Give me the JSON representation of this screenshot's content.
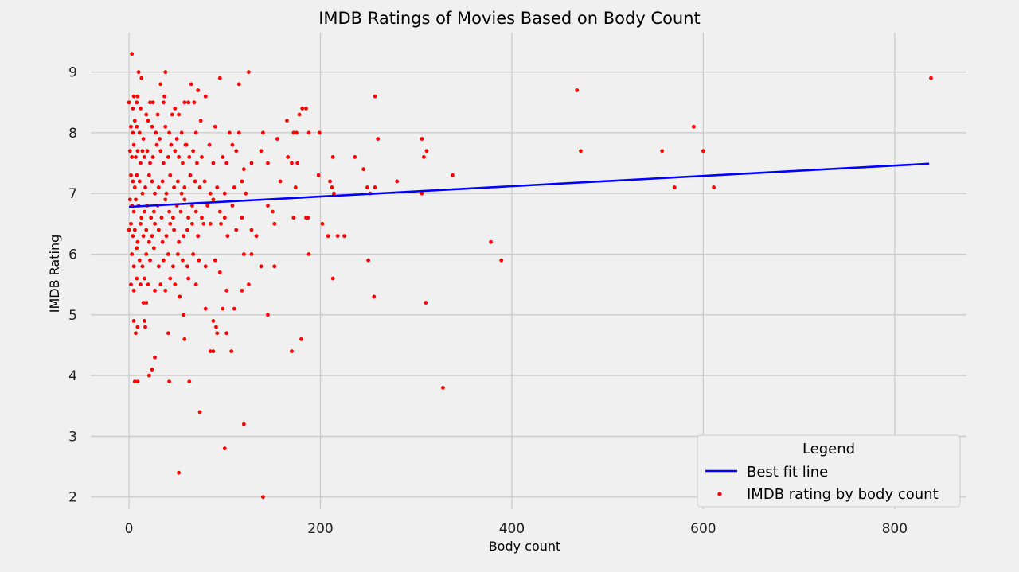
{
  "chart_data": {
    "type": "scatter",
    "title": "IMDB Ratings of Movies Based on Body Count",
    "xlabel": "Body count",
    "ylabel": "IMDB Rating",
    "xlim": [
      -40,
      875
    ],
    "ylim": [
      1.8,
      9.65
    ],
    "xticks": [
      0,
      200,
      400,
      600,
      800
    ],
    "yticks": [
      2,
      3,
      4,
      5,
      6,
      7,
      8,
      9
    ],
    "grid": true,
    "colors": {
      "points": "#ff0000",
      "line": "#0000ff",
      "background": "#f0f0f0",
      "grid": "#cbcbcb"
    },
    "legend": {
      "title": "Legend",
      "placement": "lower-right",
      "entries": [
        "Best fit line",
        "IMDB rating by body count"
      ]
    },
    "series": [
      {
        "name": "Best fit line",
        "kind": "line",
        "x": [
          0,
          836
        ],
        "y": [
          6.78,
          7.49
        ]
      },
      {
        "name": "IMDB rating by body count",
        "kind": "scatter",
        "points": [
          [
            3,
            9.3
          ],
          [
            10,
            9.0
          ],
          [
            13,
            8.9
          ],
          [
            38,
            9.0
          ],
          [
            95,
            8.9
          ],
          [
            115,
            8.8
          ],
          [
            125,
            9.0
          ],
          [
            838,
            8.9
          ],
          [
            0,
            8.5
          ],
          [
            4,
            8.4
          ],
          [
            5,
            8.6
          ],
          [
            8,
            8.5
          ],
          [
            9,
            8.6
          ],
          [
            12,
            8.4
          ],
          [
            18,
            8.3
          ],
          [
            22,
            8.5
          ],
          [
            25,
            8.5
          ],
          [
            30,
            8.3
          ],
          [
            33,
            8.8
          ],
          [
            36,
            8.5
          ],
          [
            37,
            8.6
          ],
          [
            45,
            8.3
          ],
          [
            48,
            8.4
          ],
          [
            52,
            8.3
          ],
          [
            58,
            8.5
          ],
          [
            62,
            8.5
          ],
          [
            65,
            8.8
          ],
          [
            68,
            8.5
          ],
          [
            72,
            8.7
          ],
          [
            80,
            8.6
          ],
          [
            181,
            8.4
          ],
          [
            185,
            8.4
          ],
          [
            178,
            8.3
          ],
          [
            257,
            8.6
          ],
          [
            468,
            8.7
          ],
          [
            2,
            8.1
          ],
          [
            4,
            8.0
          ],
          [
            6,
            8.2
          ],
          [
            8,
            8.1
          ],
          [
            11,
            8.0
          ],
          [
            15,
            7.9
          ],
          [
            20,
            8.2
          ],
          [
            24,
            8.1
          ],
          [
            28,
            8.0
          ],
          [
            32,
            7.9
          ],
          [
            38,
            8.1
          ],
          [
            42,
            8.0
          ],
          [
            50,
            7.9
          ],
          [
            55,
            8.0
          ],
          [
            60,
            7.8
          ],
          [
            70,
            8.0
          ],
          [
            75,
            8.2
          ],
          [
            90,
            8.1
          ],
          [
            105,
            8.0
          ],
          [
            115,
            8.0
          ],
          [
            140,
            8.0
          ],
          [
            165,
            8.2
          ],
          [
            172,
            8.0
          ],
          [
            175,
            8.0
          ],
          [
            188,
            8.0
          ],
          [
            199,
            8.0
          ],
          [
            590,
            8.1
          ],
          [
            1,
            7.7
          ],
          [
            3,
            7.6
          ],
          [
            5,
            7.8
          ],
          [
            7,
            7.6
          ],
          [
            9,
            7.7
          ],
          [
            12,
            7.5
          ],
          [
            14,
            7.7
          ],
          [
            16,
            7.6
          ],
          [
            19,
            7.7
          ],
          [
            22,
            7.5
          ],
          [
            25,
            7.6
          ],
          [
            29,
            7.8
          ],
          [
            33,
            7.7
          ],
          [
            36,
            7.5
          ],
          [
            41,
            7.6
          ],
          [
            44,
            7.8
          ],
          [
            48,
            7.7
          ],
          [
            52,
            7.6
          ],
          [
            56,
            7.5
          ],
          [
            59,
            7.8
          ],
          [
            63,
            7.6
          ],
          [
            67,
            7.7
          ],
          [
            71,
            7.5
          ],
          [
            76,
            7.6
          ],
          [
            84,
            7.8
          ],
          [
            88,
            7.5
          ],
          [
            98,
            7.6
          ],
          [
            102,
            7.5
          ],
          [
            108,
            7.8
          ],
          [
            112,
            7.7
          ],
          [
            120,
            7.4
          ],
          [
            128,
            7.5
          ],
          [
            138,
            7.7
          ],
          [
            145,
            7.5
          ],
          [
            155,
            7.9
          ],
          [
            166,
            7.6
          ],
          [
            170,
            7.5
          ],
          [
            176,
            7.5
          ],
          [
            213,
            7.6
          ],
          [
            236,
            7.6
          ],
          [
            245,
            7.4
          ],
          [
            260,
            7.9
          ],
          [
            306,
            7.9
          ],
          [
            308,
            7.6
          ],
          [
            311,
            7.7
          ],
          [
            472,
            7.7
          ],
          [
            557,
            7.7
          ],
          [
            600,
            7.7
          ],
          [
            2,
            7.3
          ],
          [
            4,
            7.2
          ],
          [
            6,
            7.1
          ],
          [
            8,
            7.3
          ],
          [
            11,
            7.2
          ],
          [
            14,
            7.0
          ],
          [
            17,
            7.1
          ],
          [
            21,
            7.3
          ],
          [
            24,
            7.2
          ],
          [
            27,
            7.0
          ],
          [
            31,
            7.1
          ],
          [
            35,
            7.2
          ],
          [
            39,
            7.0
          ],
          [
            43,
            7.3
          ],
          [
            47,
            7.1
          ],
          [
            51,
            7.2
          ],
          [
            55,
            7.0
          ],
          [
            58,
            7.1
          ],
          [
            64,
            7.3
          ],
          [
            69,
            7.2
          ],
          [
            74,
            7.1
          ],
          [
            79,
            7.2
          ],
          [
            85,
            7.0
          ],
          [
            92,
            7.1
          ],
          [
            100,
            7.0
          ],
          [
            110,
            7.1
          ],
          [
            118,
            7.2
          ],
          [
            122,
            7.0
          ],
          [
            158,
            7.2
          ],
          [
            174,
            7.1
          ],
          [
            198,
            7.3
          ],
          [
            210,
            7.2
          ],
          [
            212,
            7.1
          ],
          [
            214,
            7.0
          ],
          [
            249,
            7.1
          ],
          [
            257,
            7.1
          ],
          [
            280,
            7.2
          ],
          [
            306,
            7.0
          ],
          [
            338,
            7.3
          ],
          [
            570,
            7.1
          ],
          [
            611,
            7.1
          ],
          [
            1,
            6.9
          ],
          [
            3,
            6.8
          ],
          [
            5,
            6.7
          ],
          [
            7,
            6.9
          ],
          [
            10,
            6.8
          ],
          [
            13,
            6.6
          ],
          [
            16,
            6.7
          ],
          [
            19,
            6.8
          ],
          [
            23,
            6.6
          ],
          [
            26,
            6.7
          ],
          [
            30,
            6.8
          ],
          [
            34,
            6.6
          ],
          [
            38,
            6.9
          ],
          [
            42,
            6.7
          ],
          [
            46,
            6.6
          ],
          [
            50,
            6.8
          ],
          [
            54,
            6.7
          ],
          [
            58,
            6.9
          ],
          [
            62,
            6.6
          ],
          [
            66,
            6.8
          ],
          [
            70,
            6.7
          ],
          [
            76,
            6.6
          ],
          [
            82,
            6.8
          ],
          [
            88,
            6.9
          ],
          [
            95,
            6.7
          ],
          [
            100,
            6.6
          ],
          [
            108,
            6.8
          ],
          [
            118,
            6.6
          ],
          [
            145,
            6.8
          ],
          [
            150,
            6.7
          ],
          [
            172,
            6.6
          ],
          [
            185,
            6.6
          ],
          [
            187,
            6.6
          ],
          [
            252,
            7.0
          ],
          [
            0,
            6.4
          ],
          [
            2,
            6.5
          ],
          [
            4,
            6.3
          ],
          [
            6,
            6.4
          ],
          [
            9,
            6.2
          ],
          [
            12,
            6.5
          ],
          [
            15,
            6.3
          ],
          [
            18,
            6.4
          ],
          [
            21,
            6.2
          ],
          [
            24,
            6.3
          ],
          [
            27,
            6.5
          ],
          [
            31,
            6.4
          ],
          [
            35,
            6.2
          ],
          [
            39,
            6.3
          ],
          [
            43,
            6.5
          ],
          [
            47,
            6.4
          ],
          [
            52,
            6.2
          ],
          [
            57,
            6.3
          ],
          [
            61,
            6.4
          ],
          [
            66,
            6.5
          ],
          [
            72,
            6.3
          ],
          [
            78,
            6.5
          ],
          [
            85,
            6.5
          ],
          [
            96,
            6.5
          ],
          [
            103,
            6.3
          ],
          [
            112,
            6.4
          ],
          [
            128,
            6.4
          ],
          [
            133,
            6.3
          ],
          [
            152,
            6.5
          ],
          [
            202,
            6.5
          ],
          [
            208,
            6.3
          ],
          [
            218,
            6.3
          ],
          [
            225,
            6.3
          ],
          [
            3,
            6.0
          ],
          [
            5,
            5.8
          ],
          [
            8,
            6.1
          ],
          [
            11,
            5.9
          ],
          [
            14,
            5.8
          ],
          [
            18,
            6.0
          ],
          [
            22,
            5.9
          ],
          [
            26,
            6.1
          ],
          [
            31,
            5.8
          ],
          [
            36,
            5.9
          ],
          [
            41,
            6.0
          ],
          [
            46,
            5.8
          ],
          [
            51,
            6.0
          ],
          [
            56,
            5.9
          ],
          [
            61,
            5.8
          ],
          [
            67,
            6.0
          ],
          [
            73,
            5.9
          ],
          [
            80,
            5.8
          ],
          [
            90,
            5.9
          ],
          [
            120,
            6.0
          ],
          [
            128,
            6.0
          ],
          [
            138,
            5.8
          ],
          [
            152,
            5.8
          ],
          [
            188,
            6.0
          ],
          [
            250,
            5.9
          ],
          [
            378,
            6.2
          ],
          [
            389,
            5.9
          ],
          [
            2,
            5.5
          ],
          [
            5,
            5.4
          ],
          [
            8,
            5.6
          ],
          [
            12,
            5.5
          ],
          [
            16,
            5.6
          ],
          [
            20,
            5.5
          ],
          [
            27,
            5.4
          ],
          [
            33,
            5.5
          ],
          [
            38,
            5.4
          ],
          [
            43,
            5.6
          ],
          [
            48,
            5.5
          ],
          [
            53,
            5.3
          ],
          [
            57,
            5.0
          ],
          [
            62,
            5.6
          ],
          [
            70,
            5.5
          ],
          [
            80,
            5.1
          ],
          [
            88,
            4.9
          ],
          [
            91,
            4.8
          ],
          [
            92,
            4.7
          ],
          [
            95,
            5.7
          ],
          [
            98,
            5.1
          ],
          [
            102,
            5.4
          ],
          [
            110,
            5.1
          ],
          [
            118,
            5.4
          ],
          [
            125,
            5.5
          ],
          [
            145,
            5.0
          ],
          [
            213,
            5.6
          ],
          [
            256,
            5.3
          ],
          [
            310,
            5.2
          ],
          [
            5,
            4.9
          ],
          [
            7,
            4.7
          ],
          [
            9,
            4.8
          ],
          [
            15,
            5.2
          ],
          [
            18,
            5.2
          ],
          [
            16,
            4.9
          ],
          [
            17,
            4.8
          ],
          [
            21,
            4.0
          ],
          [
            24,
            4.1
          ],
          [
            27,
            4.3
          ],
          [
            41,
            4.7
          ],
          [
            58,
            4.6
          ],
          [
            85,
            4.4
          ],
          [
            88,
            4.4
          ],
          [
            102,
            4.7
          ],
          [
            107,
            4.4
          ],
          [
            170,
            4.4
          ],
          [
            180,
            4.6
          ],
          [
            6,
            3.9
          ],
          [
            9,
            3.9
          ],
          [
            42,
            3.9
          ],
          [
            63,
            3.9
          ],
          [
            74,
            3.4
          ],
          [
            100,
            2.8
          ],
          [
            52,
            2.4
          ],
          [
            120,
            3.2
          ],
          [
            140,
            2.0
          ],
          [
            328,
            3.8
          ]
        ]
      }
    ]
  }
}
